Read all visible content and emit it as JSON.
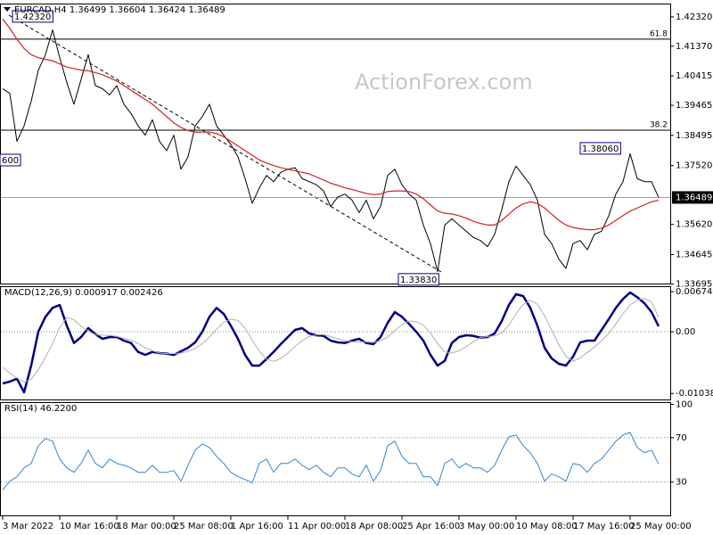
{
  "chart_data": [
    {
      "type": "line",
      "title": "EURCAD,H4 1.36499 1.36604 1.36424 1.36489",
      "watermark": "ActionForex.com",
      "ylim": [
        1.3371,
        1.4272
      ],
      "yticks": [
        {
          "value": 1.4232,
          "label": "1.42320"
        },
        {
          "value": 1.4137,
          "label": "1.41370"
        },
        {
          "value": 1.40415,
          "label": "1.40415"
        },
        {
          "value": 1.39465,
          "label": "1.39465"
        },
        {
          "value": 1.38495,
          "label": "1.38495"
        },
        {
          "value": 1.3752,
          "label": "1.37520"
        },
        {
          "value": 1.3562,
          "label": "1.35620"
        },
        {
          "value": 1.34645,
          "label": "1.34645"
        },
        {
          "value": 1.33695,
          "label": "1.33695"
        }
      ],
      "series": [
        {
          "color": "#000000",
          "values": [
            1.4,
            1.3985,
            1.383,
            1.388,
            1.396,
            1.406,
            1.411,
            1.419,
            1.41,
            1.402,
            1.395,
            1.403,
            1.411,
            1.401,
            1.4,
            1.398,
            1.401,
            1.395,
            1.392,
            1.388,
            1.385,
            1.39,
            1.383,
            1.38,
            1.385,
            1.374,
            1.378,
            1.388,
            1.391,
            1.395,
            1.388,
            1.385,
            1.382,
            1.378,
            1.371,
            1.363,
            1.368,
            1.372,
            1.37,
            1.373,
            1.374,
            1.3745,
            1.371,
            1.37,
            1.369,
            1.367,
            1.362,
            1.365,
            1.366,
            1.364,
            1.36,
            1.364,
            1.358,
            1.362,
            1.372,
            1.374,
            1.369,
            1.366,
            1.364,
            1.356,
            1.35,
            1.341,
            1.356,
            1.358,
            1.356,
            1.354,
            1.352,
            1.351,
            1.349,
            1.353,
            1.361,
            1.37,
            1.375,
            1.372,
            1.369,
            1.364,
            1.353,
            1.35,
            1.345,
            1.342,
            1.35,
            1.351,
            1.348,
            1.353,
            1.354,
            1.359,
            1.366,
            1.37,
            1.379,
            1.371,
            1.37,
            1.37,
            1.3649
          ]
        },
        {
          "color": "#d42020",
          "values": [
            1.4225,
            1.4195,
            1.416,
            1.413,
            1.411,
            1.41,
            1.4095,
            1.409,
            1.408,
            1.407,
            1.4065,
            1.406,
            1.4058,
            1.4052,
            1.4045,
            1.4035,
            1.4025,
            1.401,
            1.3995,
            1.398,
            1.3965,
            1.395,
            1.393,
            1.391,
            1.389,
            1.3875,
            1.3865,
            1.386,
            1.386,
            1.386,
            1.3855,
            1.3845,
            1.383,
            1.3815,
            1.38,
            1.3785,
            1.377,
            1.376,
            1.3752,
            1.3745,
            1.374,
            1.3735,
            1.373,
            1.3725,
            1.3715,
            1.3705,
            1.3695,
            1.3688,
            1.368,
            1.3675,
            1.3668,
            1.3662,
            1.3658,
            1.366,
            1.3668,
            1.367,
            1.367,
            1.3668,
            1.366,
            1.3645,
            1.3625,
            1.3605,
            1.3598,
            1.3596,
            1.359,
            1.3582,
            1.3572,
            1.3565,
            1.356,
            1.356,
            1.3575,
            1.3595,
            1.3615,
            1.3628,
            1.3635,
            1.363,
            1.3615,
            1.3595,
            1.3575,
            1.356,
            1.3552,
            1.3548,
            1.3545,
            1.3545,
            1.355,
            1.356,
            1.3575,
            1.359,
            1.3605,
            1.3615,
            1.3625,
            1.3635,
            1.364
          ]
        }
      ],
      "levels": [
        {
          "label": "61.8",
          "value": 1.416
        },
        {
          "label": "38.2",
          "value": 1.3866
        }
      ],
      "last": {
        "label": "1.36489",
        "value": 1.36489
      },
      "annotations": [
        {
          "label": "1.42320",
          "value": 1.4232
        },
        {
          "label": "600"
        },
        {
          "label": "1.33830",
          "value": 1.3383
        },
        {
          "label": "1.38060",
          "value": 1.3806
        }
      ]
    },
    {
      "type": "line",
      "title": "MACD(12,26,9) 0.000917 0.002426",
      "ylim": [
        -0.0114,
        0.0075
      ],
      "yticks": [
        0.006744,
        {
          "value": 0,
          "label": "0.00"
        },
        -0.010385
      ],
      "levels": [
        0
      ],
      "series": [
        {
          "color": "#000080",
          "values": [
            -0.0087,
            -0.0084,
            -0.0079,
            -0.0102,
            -0.0057,
            0.0,
            0.0025,
            0.004,
            0.0045,
            0.001,
            -0.0019,
            -0.0009,
            0.0006,
            -0.0004,
            -0.0012,
            -0.0009,
            -0.0009,
            -0.0015,
            -0.0019,
            -0.0034,
            -0.0039,
            -0.0034,
            -0.0036,
            -0.0037,
            -0.0039,
            -0.0033,
            -0.0027,
            -0.0018,
            0.0,
            0.0025,
            0.004,
            0.003,
            0.001,
            -0.0012,
            -0.0039,
            -0.0057,
            -0.0057,
            -0.0046,
            -0.0034,
            -0.0021,
            -0.0009,
            0.0003,
            0.0006,
            -0.0003,
            -0.0006,
            -0.0007,
            -0.0015,
            -0.0018,
            -0.0019,
            -0.0015,
            -0.0012,
            -0.0019,
            -0.0021,
            -0.0009,
            0.0015,
            0.0033,
            0.0025,
            0.0013,
            0.0,
            -0.0015,
            -0.0039,
            -0.0057,
            -0.0049,
            -0.0019,
            -0.0009,
            -0.0006,
            -0.0007,
            -0.001,
            -0.0009,
            -0.0003,
            0.0018,
            0.0045,
            0.0063,
            0.006,
            0.004,
            0.001,
            -0.0027,
            -0.0045,
            -0.0054,
            -0.0057,
            -0.0042,
            -0.0018,
            -0.0015,
            -0.0015,
            0.0003,
            0.0021,
            0.004,
            0.0055,
            0.0066,
            0.0058,
            0.0048,
            0.0033,
            0.000917
          ]
        },
        {
          "color": "#b0b0b0",
          "values": [
            -0.006,
            -0.007,
            -0.0078,
            -0.0085,
            -0.008,
            -0.0064,
            -0.0043,
            -0.002,
            0.0007,
            0.0024,
            0.002,
            0.0009,
            0.0001,
            -0.0005,
            -0.0006,
            -0.0006,
            -0.0008,
            -0.0011,
            -0.0014,
            -0.002,
            -0.0027,
            -0.0032,
            -0.0036,
            -0.0037,
            -0.0037,
            -0.0036,
            -0.0033,
            -0.0028,
            -0.002,
            -0.0009,
            0.0004,
            0.0016,
            0.0021,
            0.0019,
            0.0006,
            -0.0014,
            -0.0033,
            -0.0046,
            -0.005,
            -0.0045,
            -0.0036,
            -0.0025,
            -0.0015,
            -0.0008,
            -0.0005,
            -0.0005,
            -0.0008,
            -0.0012,
            -0.0015,
            -0.0017,
            -0.0017,
            -0.0017,
            -0.0018,
            -0.0015,
            -0.0009,
            0.0002,
            0.0012,
            0.0018,
            0.0017,
            0.0011,
            -0.0002,
            -0.002,
            -0.0034,
            -0.0036,
            -0.0032,
            -0.0025,
            -0.0017,
            -0.001,
            -0.0008,
            -0.0007,
            -0.0002,
            0.0011,
            0.003,
            0.0046,
            0.0053,
            0.0046,
            0.0027,
            0.0003,
            -0.0022,
            -0.0041,
            -0.005,
            -0.0044,
            -0.0035,
            -0.0026,
            -0.0015,
            -0.0003,
            0.0013,
            0.003,
            0.0045,
            0.0053,
            0.0056,
            0.005,
            0.002426
          ]
        }
      ]
    },
    {
      "type": "line",
      "title": "RSI(14) 46.2200",
      "ylim": [
        0,
        101.2
      ],
      "yticks": [
        100,
        70,
        30
      ],
      "levels": [
        70,
        30
      ],
      "categories": [
        "3 Mar 2022",
        null,
        null,
        null,
        null,
        null,
        null,
        null,
        "10 Mar 16:00",
        null,
        null,
        null,
        null,
        null,
        null,
        null,
        "18 Mar 00:00",
        null,
        null,
        null,
        null,
        null,
        null,
        null,
        "25 Mar 08:00",
        null,
        null,
        null,
        null,
        null,
        null,
        null,
        "1 Apr 16:00",
        null,
        null,
        null,
        null,
        null,
        null,
        null,
        "11 Apr 00:00",
        null,
        null,
        null,
        null,
        null,
        null,
        null,
        "18 Apr 08:00",
        null,
        null,
        null,
        null,
        null,
        null,
        null,
        "25 Apr 16:00",
        null,
        null,
        null,
        null,
        null,
        null,
        null,
        "3 May 00:00",
        null,
        null,
        null,
        null,
        null,
        null,
        null,
        "10 May 08:00",
        null,
        null,
        null,
        null,
        null,
        null,
        null,
        "17 May 16:00",
        null,
        null,
        null,
        null,
        null,
        null,
        null,
        "25 May 00:00",
        null,
        null,
        null,
        null
      ],
      "series": [
        {
          "color": "#2f86d6",
          "values": [
            22.8,
            30.8,
            34.8,
            42.8,
            46.8,
            62.8,
            69.2,
            66.8,
            50.8,
            42.8,
            38.8,
            46.8,
            58.8,
            46.8,
            42.8,
            50.8,
            46.8,
            45.2,
            42.8,
            38.8,
            38.8,
            45.2,
            38.8,
            38.8,
            40.4,
            30.8,
            45.2,
            58.8,
            64.4,
            61.2,
            53.2,
            46.8,
            38.8,
            34.8,
            32.4,
            29.2,
            46.8,
            50.8,
            38.8,
            46.8,
            46.8,
            50.8,
            45.2,
            41.2,
            45.2,
            38.8,
            34.8,
            42.8,
            42.8,
            37.2,
            34.8,
            45.2,
            30.8,
            40.4,
            62.8,
            66.8,
            53.2,
            46.8,
            46.8,
            34.8,
            34.8,
            26.8,
            46.8,
            50.8,
            42.8,
            46.8,
            42.8,
            42.8,
            38.8,
            45.2,
            58.8,
            70.8,
            72.4,
            62.8,
            56.4,
            46.8,
            30.8,
            37.2,
            34.8,
            30.8,
            46.8,
            45.2,
            38.8,
            46.8,
            50.8,
            58.8,
            66.8,
            72.4,
            74.8,
            61.2,
            56.4,
            58.8,
            46.22
          ]
        }
      ]
    }
  ]
}
